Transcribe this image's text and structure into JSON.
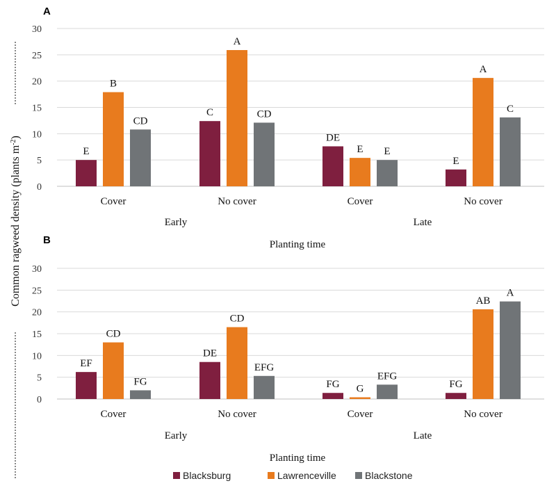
{
  "chart_data": [
    {
      "type": "bar",
      "panel_label": "A",
      "groups": [
        "Early",
        "Late"
      ],
      "categories": [
        "Cover",
        "No cover",
        "Cover",
        "No cover"
      ],
      "series": [
        {
          "name": "Blacksburg",
          "values": [
            5.0,
            12.4,
            7.6,
            3.2
          ],
          "labels": [
            "E",
            "C",
            "DE",
            "E"
          ]
        },
        {
          "name": "Lawrenceville",
          "values": [
            17.9,
            25.9,
            5.4,
            20.6
          ],
          "labels": [
            "B",
            "A",
            "E",
            "A"
          ]
        },
        {
          "name": "Blackstone",
          "values": [
            10.8,
            12.1,
            5.0,
            13.1
          ],
          "labels": [
            "CD",
            "CD",
            "E",
            "C"
          ]
        }
      ],
      "yticks": [
        "0",
        "5",
        "10",
        "15",
        "20",
        "25",
        "30"
      ],
      "ylim": [
        0,
        30
      ],
      "xlabel": "Planting time"
    },
    {
      "type": "bar",
      "panel_label": "B",
      "groups": [
        "Early",
        "Late"
      ],
      "categories": [
        "Cover",
        "No cover",
        "Cover",
        "No cover"
      ],
      "series": [
        {
          "name": "Blacksburg",
          "values": [
            6.2,
            8.5,
            1.4,
            1.4
          ],
          "labels": [
            "EF",
            "DE",
            "FG",
            "FG"
          ]
        },
        {
          "name": "Lawrenceville",
          "values": [
            13.0,
            16.5,
            0.4,
            20.6
          ],
          "labels": [
            "CD",
            "CD",
            "G",
            "AB"
          ]
        },
        {
          "name": "Blackstone",
          "values": [
            2.0,
            5.3,
            3.3,
            22.4
          ],
          "labels": [
            "FG",
            "EFG",
            "EFG",
            "A"
          ]
        }
      ],
      "yticks": [
        "0",
        "5",
        "10",
        "15",
        "20",
        "25",
        "30"
      ],
      "ylim": [
        0,
        30
      ],
      "xlabel": "Planting time"
    }
  ],
  "ylabel": "Common ragweed density (plants m",
  "ylabel_sup": "-2",
  "ylabel_close": ")",
  "legend": [
    {
      "name": "Blacksburg",
      "color": "#7f1f3f"
    },
    {
      "name": "Lawrenceville",
      "color": "#e87b1e"
    },
    {
      "name": "Blackstone",
      "color": "#707477"
    }
  ]
}
